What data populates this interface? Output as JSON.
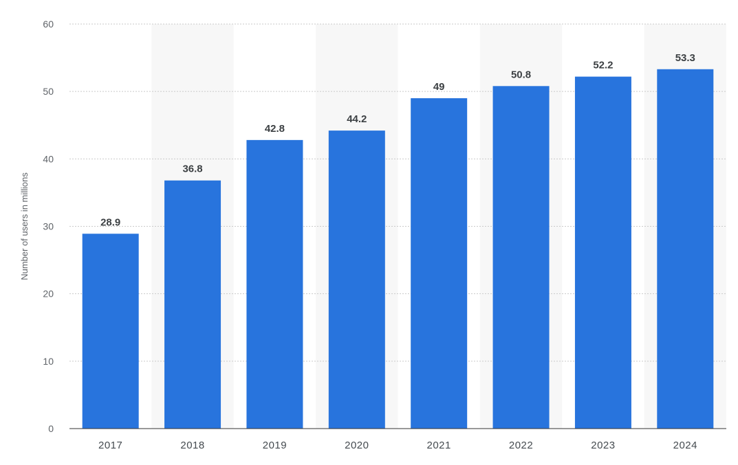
{
  "chart_data": {
    "type": "bar",
    "categories": [
      "2017",
      "2018",
      "2019",
      "2020",
      "2021",
      "2022",
      "2023",
      "2024"
    ],
    "values": [
      28.9,
      36.8,
      42.8,
      44.2,
      49,
      50.8,
      52.2,
      53.3
    ],
    "value_labels": [
      "28.9",
      "36.8",
      "42.8",
      "44.2",
      "49",
      "50.8",
      "52.2",
      "53.3"
    ],
    "ylabel": "Number of users in millions",
    "ylim": [
      0,
      60
    ],
    "yticks": [
      0,
      10,
      20,
      30,
      40,
      50,
      60
    ],
    "grid": true,
    "bar_color": "#2874dd",
    "alternate_band_color": "#f7f7f7"
  }
}
